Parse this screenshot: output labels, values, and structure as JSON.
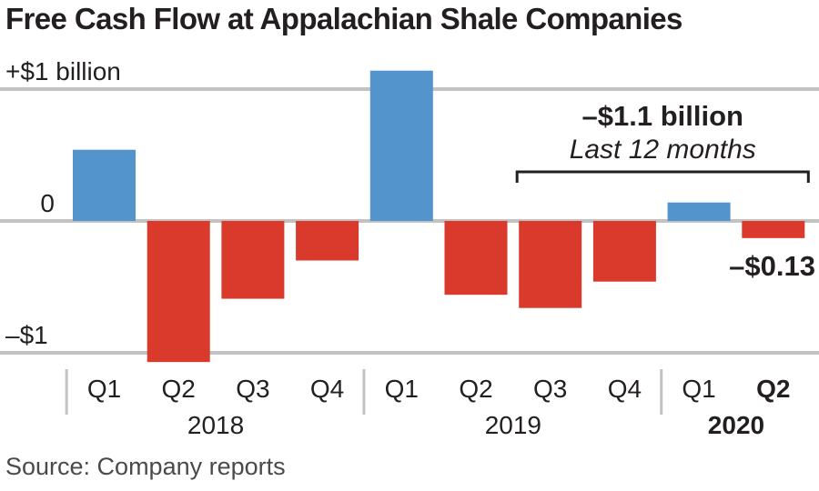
{
  "chart_data": {
    "type": "bar",
    "title": "Free Cash Flow at Appalachian Shale Companies",
    "source": "Source: Company reports",
    "unit": "billion USD",
    "ylim": [
      -1.1,
      1.2
    ],
    "grid": true,
    "y_ticks": [
      {
        "value": 1,
        "label": "+$1 billion"
      },
      {
        "value": 0,
        "label": "0"
      },
      {
        "value": -1,
        "label": "–$1"
      }
    ],
    "categories": [
      "Q1",
      "Q2",
      "Q3",
      "Q4",
      "Q1",
      "Q2",
      "Q3",
      "Q4",
      "Q1",
      "Q2"
    ],
    "years": [
      {
        "label": "2018",
        "start": 0,
        "end": 3,
        "bold": false
      },
      {
        "label": "2019",
        "start": 4,
        "end": 7,
        "bold": false
      },
      {
        "label": "2020",
        "start": 8,
        "end": 9,
        "bold": true
      }
    ],
    "bold_categories": [
      9
    ],
    "values": [
      0.54,
      -1.07,
      -0.59,
      -0.3,
      1.14,
      -0.56,
      -0.66,
      -0.46,
      0.14,
      -0.13
    ],
    "colors": {
      "positive": "#5294cb",
      "negative": "#d93a2b",
      "grid": "#c2c2c2",
      "bracket": "#231f20"
    },
    "annotations": {
      "total_label": "–$1.1 billion",
      "period_label": "Last 12 months",
      "bracket_start": 6,
      "bracket_end": 9,
      "last_value_label": "–$0.13"
    }
  }
}
